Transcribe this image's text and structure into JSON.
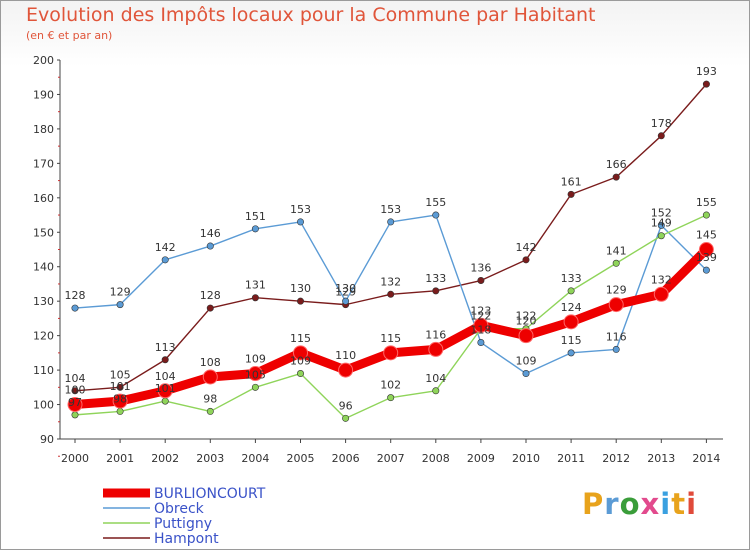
{
  "title": "Evolution des Impôts locaux pour la Commune par Habitant",
  "subtitle": "(en € et par an)",
  "logo_text": "Proxiti",
  "chart_data": {
    "type": "line",
    "title": "Evolution des Impôts locaux pour la Commune par Habitant",
    "ylabel": "(en € et par an)",
    "xlabel": "",
    "ylim": [
      90,
      200
    ],
    "yticks": [
      90,
      100,
      110,
      120,
      130,
      140,
      150,
      160,
      170,
      180,
      190,
      200
    ],
    "categories": [
      "2000",
      "2001",
      "2002",
      "2003",
      "2004",
      "2005",
      "2006",
      "2007",
      "2008",
      "2009",
      "2010",
      "2011",
      "2012",
      "2013",
      "2014"
    ],
    "series": [
      {
        "name": "Hampont",
        "color": "#7a1c1c",
        "values": [
          104,
          105,
          113,
          128,
          131,
          130,
          129,
          132,
          133,
          136,
          142,
          161,
          166,
          178,
          193
        ]
      },
      {
        "name": "Obreck",
        "color": "#5b9bd5",
        "values": [
          128,
          129,
          142,
          146,
          151,
          153,
          130,
          153,
          155,
          118,
          109,
          115,
          116,
          152,
          139
        ]
      },
      {
        "name": "Puttigny",
        "color": "#8fd45a",
        "values": [
          97,
          98,
          101,
          98,
          105,
          109,
          96,
          102,
          104,
          122,
          122,
          133,
          141,
          149,
          155
        ]
      },
      {
        "name": "BURLIONCOURT",
        "color": "#ee0000",
        "values": [
          100,
          101,
          104,
          108,
          109,
          115,
          110,
          115,
          116,
          123,
          120,
          124,
          129,
          132,
          145
        ]
      }
    ],
    "legend_order": [
      "BURLIONCOURT",
      "Obreck",
      "Puttigny",
      "Hampont"
    ],
    "legend_position": "bottom-left",
    "grid": false
  }
}
